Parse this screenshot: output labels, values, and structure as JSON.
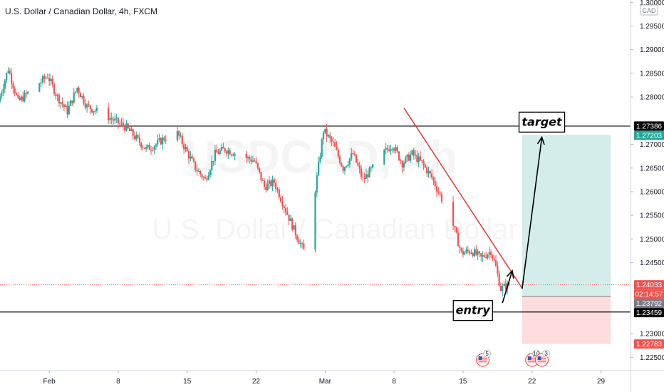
{
  "chart_data": {
    "type": "candlestick",
    "title": "U.S. Dollar / Canadian Dollar, 4h, FXCM",
    "watermark_symbol": "USDCAD, 4h",
    "watermark_name": "U.S. Dollar / Canadian Dollar",
    "currency_label": "CAD",
    "ylim": [
      1.2222,
      1.3005
    ],
    "y_ticks": [
      "1.30000",
      "1.29500",
      "1.29000",
      "1.28500",
      "1.28000",
      "1.27000",
      "1.26500",
      "1.26000",
      "1.25500",
      "1.25000",
      "1.24500",
      "1.23000",
      "1.22500"
    ],
    "x_ticks": [
      "Feb",
      "8",
      "15",
      "22",
      "Mar",
      "8",
      "15",
      "22",
      "29"
    ],
    "x_range": [
      "2021-01-27",
      "2021-04-01"
    ],
    "price_badges": [
      {
        "label": "1.27386",
        "value": 1.27386,
        "color": "#000000"
      },
      {
        "label": "1.27203",
        "value": 1.27203,
        "color": "#26a69a"
      },
      {
        "label": "1.24033",
        "value": 1.24033,
        "color": "#ef5350"
      },
      {
        "label": "02:14:57",
        "value": 1.23905,
        "color": "#ef5350"
      },
      {
        "label": "1.23792",
        "value": 1.23792,
        "color": "#787b86"
      },
      {
        "label": "1.23459",
        "value": 1.23459,
        "color": "#000000"
      },
      {
        "label": "1.22783",
        "value": 1.22783,
        "color": "#ef5350"
      }
    ],
    "horizontal_lines": [
      {
        "value": 1.27386,
        "color": "#000000"
      },
      {
        "value": 1.23459,
        "color": "#000000"
      }
    ],
    "last_price": 1.24033,
    "trendline": {
      "from": [
        "2021-03-09",
        1.2777
      ],
      "to": [
        "2021-03-21",
        1.2396
      ],
      "color": "#e53935"
    },
    "position": {
      "entry": 1.23792,
      "target": 1.27203,
      "stop": 1.22783,
      "from": "2021-03-21",
      "to": "2021-03-30"
    },
    "annotations": [
      {
        "text": "target",
        "date": "2021-03-23",
        "value": 1.2747
      },
      {
        "text": "entry",
        "date": "2021-03-16",
        "value": 1.2349
      }
    ],
    "arrows": [
      {
        "from": [
          "2021-03-19",
          1.2365
        ],
        "to": [
          "2021-03-20",
          1.2433
        ]
      },
      {
        "from": [
          "2021-03-21",
          1.2395
        ],
        "to": [
          "2021-03-23",
          1.2715
        ]
      }
    ],
    "events": [
      {
        "date": "2021-03-17",
        "label": "5"
      },
      {
        "date": "2021-03-22",
        "label": "10"
      },
      {
        "date": "2021-03-23",
        "label": "3"
      }
    ],
    "anchors": [
      [
        "2021-01-27",
        1.279
      ],
      [
        "2021-01-28",
        1.286
      ],
      [
        "2021-01-29",
        1.279
      ],
      [
        "2021-02-01",
        1.2845
      ],
      [
        "2021-02-02",
        1.28
      ],
      [
        "2021-02-03",
        1.277
      ],
      [
        "2021-02-04",
        1.282
      ],
      [
        "2021-02-05",
        1.278
      ],
      [
        "2021-02-07",
        1.276
      ],
      [
        "2021-02-09",
        1.2735
      ],
      [
        "2021-02-11",
        1.269
      ],
      [
        "2021-02-12",
        1.27
      ],
      [
        "2021-02-14",
        1.273
      ],
      [
        "2021-02-15",
        1.269
      ],
      [
        "2021-02-16",
        1.265
      ],
      [
        "2021-02-17",
        1.2625
      ],
      [
        "2021-02-18",
        1.268
      ],
      [
        "2021-02-19",
        1.269
      ],
      [
        "2021-02-22",
        1.2665
      ],
      [
        "2021-02-23",
        1.261
      ],
      [
        "2021-02-24",
        1.262
      ],
      [
        "2021-02-25",
        1.257
      ],
      [
        "2021-02-26",
        1.252
      ],
      [
        "2021-02-27",
        1.2475
      ],
      [
        "2021-02-28",
        1.258
      ],
      [
        "2021-03-01",
        1.273
      ],
      [
        "2021-03-02",
        1.27
      ],
      [
        "2021-03-03",
        1.265
      ],
      [
        "2021-03-04",
        1.268
      ],
      [
        "2021-03-05",
        1.2625
      ],
      [
        "2021-03-06",
        1.265
      ],
      [
        "2021-03-07",
        1.268
      ],
      [
        "2021-03-08",
        1.27
      ],
      [
        "2021-03-09",
        1.266
      ],
      [
        "2021-03-10",
        1.268
      ],
      [
        "2021-03-11",
        1.266
      ],
      [
        "2021-03-12",
        1.263
      ],
      [
        "2021-03-13",
        1.2585
      ],
      [
        "2021-03-14",
        1.254
      ],
      [
        "2021-03-15",
        1.247
      ],
      [
        "2021-03-16",
        1.2475
      ],
      [
        "2021-03-17",
        1.246
      ],
      [
        "2021-03-18",
        1.2475
      ],
      [
        "2021-03-18T12:00",
        1.244
      ],
      [
        "2021-03-19",
        1.2395
      ],
      [
        "2021-03-19T18:00",
        1.2403
      ]
    ]
  }
}
